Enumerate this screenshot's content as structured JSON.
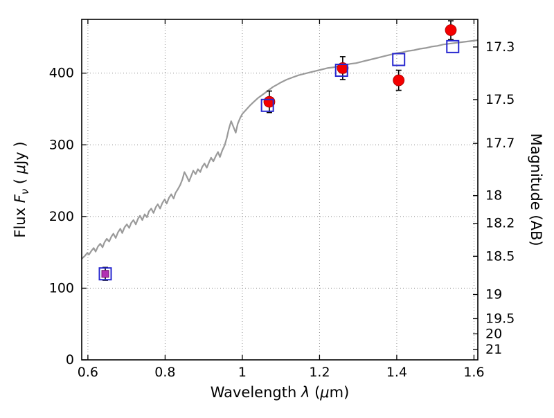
{
  "chart_data": {
    "type": "line+scatter",
    "title": "",
    "xlabel_parts": [
      {
        "t": "Wavelength  "
      },
      {
        "t": "λ",
        "i": 1
      },
      {
        "t": " ("
      },
      {
        "t": "μ",
        "i": 1
      },
      {
        "t": "m)"
      }
    ],
    "ylabel_left_parts": [
      {
        "t": "Flux  "
      },
      {
        "t": "F",
        "i": 1
      },
      {
        "t": "ν",
        "i": 1,
        "sub": 1
      },
      {
        "t": "  ( "
      },
      {
        "t": "μ",
        "i": 1
      },
      {
        "t": "Jy )"
      }
    ],
    "ylabel_right_parts": [
      {
        "t": "Magnitude (AB)"
      }
    ],
    "xlim": [
      0.584,
      1.61
    ],
    "ylim": [
      0,
      475
    ],
    "x_ticks": [
      0.6,
      0.8,
      1.0,
      1.2,
      1.4,
      1.6
    ],
    "x_tick_labels": [
      "0.6",
      "0.8",
      "1",
      "1.2",
      "1.4",
      "1.6"
    ],
    "y_ticks_left": [
      0,
      100,
      200,
      300,
      400
    ],
    "y_tick_left_labels": [
      "0",
      "100",
      "200",
      "300",
      "400"
    ],
    "y_ticks_right_flux": [
      436.5,
      363.1,
      302.0,
      229.1,
      190.5,
      144.5,
      91.2,
      57.5,
      36.3,
      14.5
    ],
    "y_tick_right_labels": [
      "17.3",
      "17.5",
      "17.7",
      "18",
      "18.2",
      "18.5",
      "19",
      "19.5",
      "20",
      "21"
    ],
    "grid": {
      "on": true,
      "style": "dotted",
      "color": "#8a8a8a"
    },
    "spectrum": {
      "name": "model-spectrum",
      "color": "#9a9a9a",
      "width": 2.2,
      "x": [
        0.584,
        0.592,
        0.598,
        0.603,
        0.609,
        0.615,
        0.62,
        0.626,
        0.632,
        0.638,
        0.643,
        0.649,
        0.655,
        0.661,
        0.666,
        0.672,
        0.678,
        0.684,
        0.689,
        0.695,
        0.701,
        0.707,
        0.712,
        0.718,
        0.724,
        0.73,
        0.735,
        0.741,
        0.747,
        0.753,
        0.758,
        0.764,
        0.77,
        0.776,
        0.781,
        0.787,
        0.793,
        0.799,
        0.804,
        0.81,
        0.816,
        0.822,
        0.827,
        0.833,
        0.839,
        0.845,
        0.85,
        0.856,
        0.862,
        0.868,
        0.873,
        0.879,
        0.885,
        0.891,
        0.896,
        0.902,
        0.908,
        0.914,
        0.919,
        0.925,
        0.931,
        0.937,
        0.942,
        0.948,
        0.954,
        0.96,
        0.965,
        0.971,
        0.977,
        0.983,
        0.988,
        0.994,
        1.0,
        1.01,
        1.02,
        1.03,
        1.04,
        1.05,
        1.06,
        1.07,
        1.08,
        1.09,
        1.1,
        1.115,
        1.13,
        1.145,
        1.16,
        1.175,
        1.19,
        1.205,
        1.22,
        1.235,
        1.25,
        1.265,
        1.28,
        1.295,
        1.31,
        1.325,
        1.34,
        1.355,
        1.37,
        1.385,
        1.4,
        1.415,
        1.43,
        1.445,
        1.46,
        1.475,
        1.49,
        1.505,
        1.52,
        1.535,
        1.55,
        1.565,
        1.58,
        1.595,
        1.61
      ],
      "y": [
        141,
        145,
        149,
        147,
        152,
        156,
        151,
        158,
        162,
        157,
        164,
        169,
        165,
        172,
        176,
        170,
        178,
        183,
        177,
        185,
        189,
        184,
        191,
        195,
        189,
        197,
        201,
        195,
        203,
        199,
        207,
        211,
        205,
        213,
        217,
        211,
        219,
        224,
        218,
        226,
        231,
        225,
        233,
        238,
        244,
        252,
        262,
        256,
        249,
        257,
        264,
        259,
        266,
        262,
        269,
        274,
        268,
        276,
        282,
        277,
        284,
        290,
        283,
        292,
        299,
        310,
        322,
        333,
        325,
        317,
        329,
        337,
        343,
        349,
        355,
        360,
        365,
        369,
        373,
        377,
        381,
        384,
        387,
        391,
        394,
        397,
        399,
        401,
        403,
        405,
        407,
        408,
        410,
        411,
        413,
        414,
        416,
        418,
        420,
        422,
        424,
        426,
        428,
        429,
        431,
        432,
        434,
        435,
        437,
        438,
        440,
        441,
        442,
        443,
        444,
        445,
        446
      ],
      "x_label_meaning": "wavelength (um)",
      "y_label_meaning": "flux (uJy)"
    },
    "red_points": {
      "name": "observed-photometry",
      "marker": "circle",
      "fill": "#f40000",
      "edge": "#a00000",
      "radius": 8,
      "errorbar_color": "#000000",
      "points": [
        {
          "x": 1.07,
          "y": 360,
          "err": 15
        },
        {
          "x": 1.26,
          "y": 407,
          "err": 16
        },
        {
          "x": 1.405,
          "y": 390,
          "err": 14
        },
        {
          "x": 1.54,
          "y": 460,
          "err": 13
        }
      ]
    },
    "purple_points": {
      "name": "optical-photometry",
      "marker": "filled-square",
      "fill": "#b32fb3",
      "edge": "#6e106e",
      "size": 10,
      "errorbar_color": "#000000",
      "points": [
        {
          "x": 0.645,
          "y": 120,
          "err": 9
        }
      ]
    },
    "blue_squares": {
      "name": "synthetic-photometry",
      "marker": "open-square",
      "stroke": "#2727cf",
      "stroke_width": 2,
      "size": 17,
      "points": [
        {
          "x": 0.645,
          "y": 120
        },
        {
          "x": 1.065,
          "y": 355
        },
        {
          "x": 1.257,
          "y": 404
        },
        {
          "x": 1.405,
          "y": 419
        },
        {
          "x": 1.545,
          "y": 437
        }
      ]
    },
    "frame_color": "#000000",
    "background": "#ffffff"
  }
}
